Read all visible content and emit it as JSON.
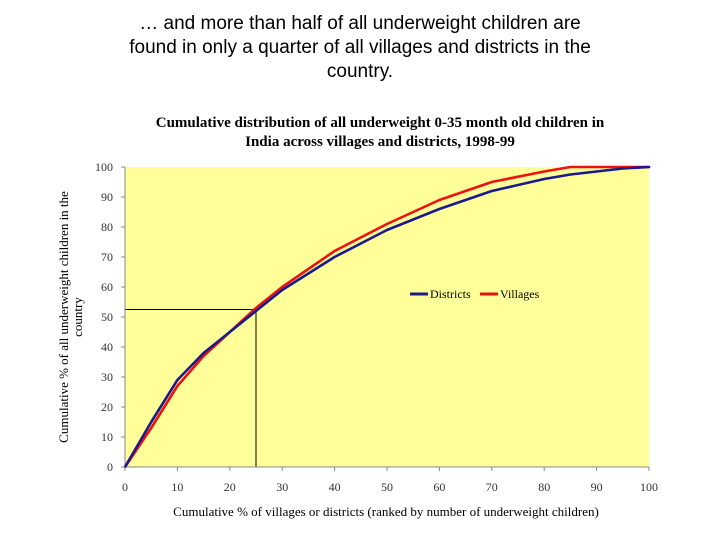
{
  "headline": {
    "line1": "… and more than half of all underweight children are",
    "line2": "found in only a quarter of all villages and districts in the",
    "line3": "country."
  },
  "chart_data": {
    "type": "line",
    "title_line1": "Cumulative distribution of all underweight 0-35 month old children in",
    "title_line2": "India across villages and districts, 1998-99",
    "xlabel": "Cumulative % of villages or districts (ranked by number of underweight children)",
    "ylabel_line1": "Cumulative % of all underweight children in the",
    "ylabel_line2": "country",
    "xlim": [
      0,
      100
    ],
    "ylim": [
      0,
      100
    ],
    "x_ticks": [
      "0",
      "10",
      "20",
      "30",
      "40",
      "50",
      "60",
      "70",
      "80",
      "90",
      "100"
    ],
    "y_ticks": [
      "0",
      "10",
      "20",
      "30",
      "40",
      "50",
      "60",
      "70",
      "80",
      "90",
      "100"
    ],
    "x": [
      0,
      5,
      10,
      15,
      20,
      25,
      30,
      40,
      50,
      60,
      70,
      80,
      85,
      90,
      95,
      100
    ],
    "series": [
      {
        "name": "Districts",
        "color": "#1a1a8c",
        "values": [
          0,
          15,
          29,
          38,
          45,
          52,
          59,
          70,
          79,
          86,
          92,
          96,
          97.5,
          98.5,
          99.5,
          100
        ]
      },
      {
        "name": "Villages",
        "color": "#ee1111",
        "values": [
          0,
          13,
          27,
          37,
          45,
          53,
          60,
          72,
          81,
          89,
          95,
          98.5,
          100,
          100,
          100,
          100
        ]
      }
    ],
    "reference_point": {
      "x": 25,
      "y": 52.5
    },
    "legend_position": "center-right",
    "plot_background": "#ffff99"
  }
}
